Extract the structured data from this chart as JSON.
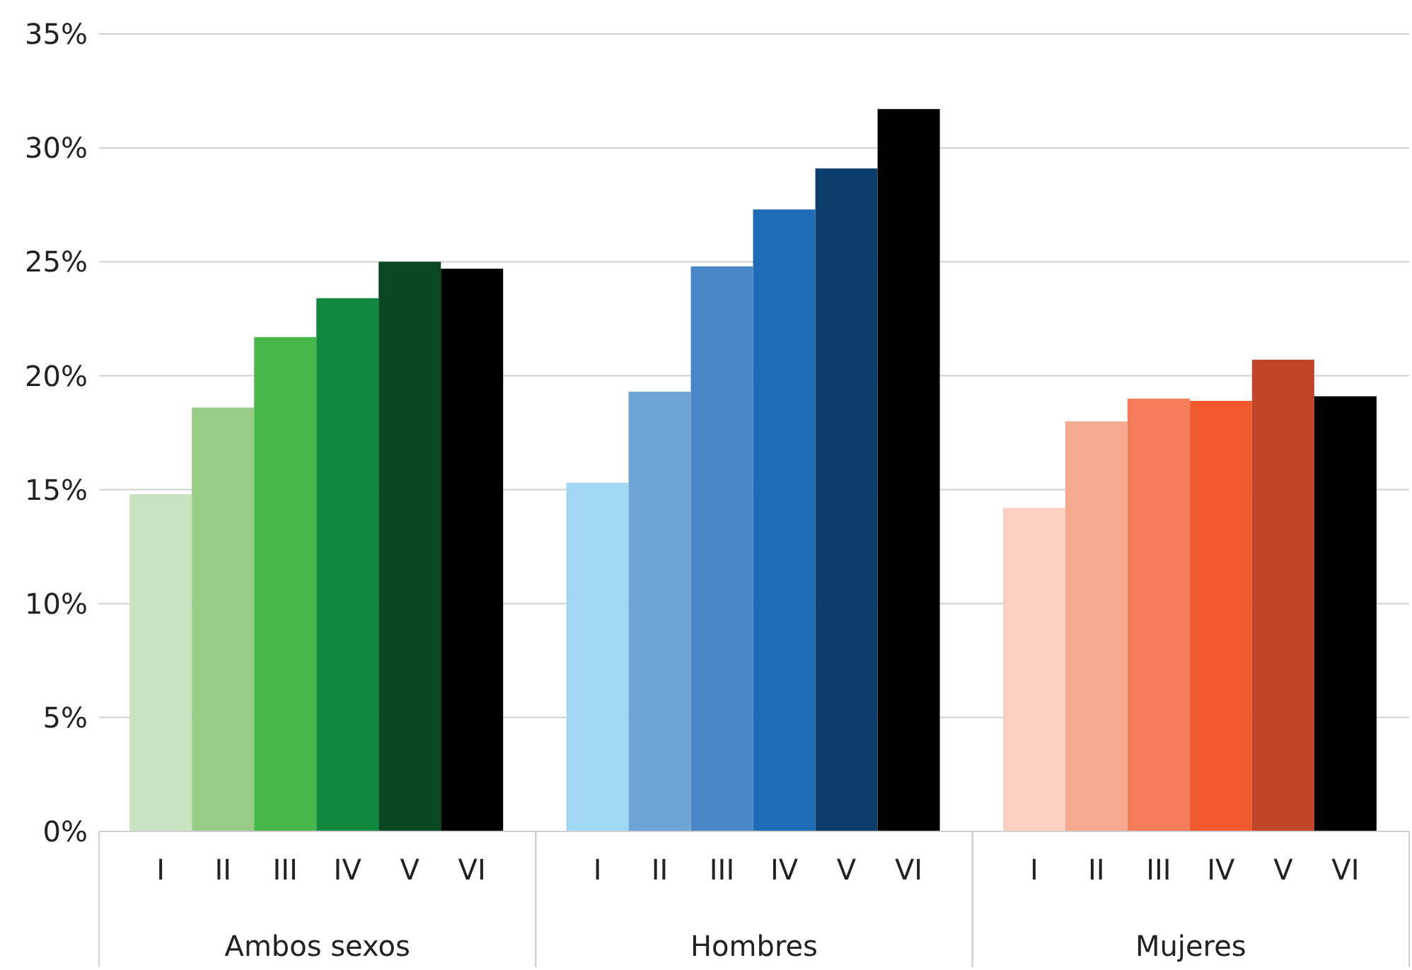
{
  "chart_data": {
    "type": "bar",
    "categories": [
      "Ambos sexos",
      "Hombres",
      "Mujeres"
    ],
    "series": [
      {
        "name": "I",
        "colors": [
          "#c9e3c2",
          "#a3d8f4",
          "#fbd0c3"
        ],
        "values": [
          14.8,
          15.3,
          14.2
        ]
      },
      {
        "name": "II",
        "colors": [
          "#96cc85",
          "#6fa4d6",
          "#f5a98f"
        ],
        "values": [
          18.6,
          19.3,
          18.0
        ]
      },
      {
        "name": "III",
        "colors": [
          "#47b74b",
          "#4a86c7",
          "#f47c58"
        ],
        "values": [
          21.7,
          24.8,
          19.0
        ]
      },
      {
        "name": "IV",
        "colors": [
          "#12883f",
          "#1f6bb5",
          "#f05a2e"
        ],
        "values": [
          23.4,
          27.3,
          18.9
        ]
      },
      {
        "name": "V",
        "colors": [
          "#0a4722",
          "#0d3e6b",
          "#bf4628"
        ],
        "values": [
          25.0,
          29.1,
          20.7
        ]
      },
      {
        "name": "VI",
        "colors": [
          "#000000",
          "#000000",
          "#000000"
        ],
        "values": [
          24.7,
          31.7,
          19.1
        ]
      }
    ],
    "ylim": [
      0,
      35
    ],
    "yticks": [
      {
        "value": 0,
        "label": "0%"
      },
      {
        "value": 5,
        "label": "5%"
      },
      {
        "value": 10,
        "label": "10%"
      },
      {
        "value": 15,
        "label": "15%"
      },
      {
        "value": 20,
        "label": "20%"
      },
      {
        "value": 25,
        "label": "25%"
      },
      {
        "value": 30,
        "label": "30%"
      },
      {
        "value": 35,
        "label": "35%"
      }
    ],
    "grid": "y",
    "legend": false
  }
}
